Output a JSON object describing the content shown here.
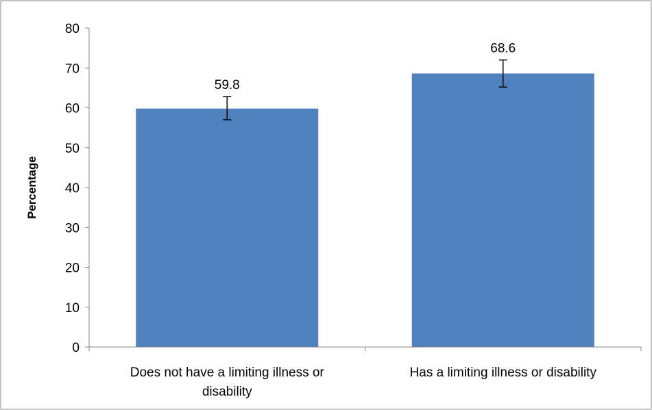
{
  "chart_data": {
    "type": "bar",
    "title": "",
    "xlabel": "",
    "ylabel": "Percentage",
    "ylim": [
      0,
      80
    ],
    "yticks": [
      0,
      10,
      20,
      30,
      40,
      50,
      60,
      70,
      80
    ],
    "categories": [
      [
        "Does not have a limiting illness or",
        "disability"
      ],
      [
        "Has a limiting illness or disability"
      ]
    ],
    "values": [
      59.8,
      68.6
    ],
    "data_labels": [
      "59.8",
      "68.6"
    ],
    "error_bars": [
      {
        "low": 57.0,
        "high": 62.8
      },
      {
        "low": 65.2,
        "high": 72.0
      }
    ],
    "bar_color": "#4f81bd",
    "grid": false,
    "legend": "none"
  }
}
